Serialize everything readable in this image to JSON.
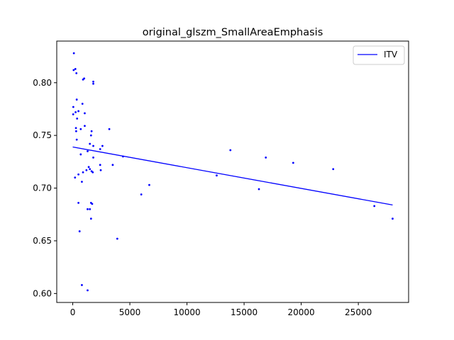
{
  "chart_data": {
    "type": "scatter",
    "title": "original_glszm_SmallAreaEmphasis",
    "xlabel": "",
    "ylabel": "",
    "xlim": [
      -1400,
      29400
    ],
    "ylim": [
      0.5915,
      0.8395
    ],
    "xticks": [
      0,
      5000,
      10000,
      15000,
      20000,
      25000
    ],
    "xtick_labels": [
      "0",
      "5000",
      "10000",
      "15000",
      "20000",
      "25000"
    ],
    "yticks": [
      0.6,
      0.65,
      0.7,
      0.75,
      0.8
    ],
    "ytick_labels": [
      "0.60",
      "0.65",
      "0.70",
      "0.75",
      "0.80"
    ],
    "grid": false,
    "legend": {
      "placement": "top-right",
      "entries": [
        "ITV"
      ]
    },
    "colors": {
      "points": "#0000ff",
      "fit_line": "#0000ff"
    },
    "fit_line": {
      "name": "ITV",
      "x": [
        0,
        28000
      ],
      "y": [
        0.739,
        0.684
      ]
    },
    "points": [
      {
        "x": 100,
        "y": 0.828
      },
      {
        "x": 80,
        "y": 0.812
      },
      {
        "x": 230,
        "y": 0.813
      },
      {
        "x": 320,
        "y": 0.809
      },
      {
        "x": 900,
        "y": 0.803
      },
      {
        "x": 1000,
        "y": 0.804
      },
      {
        "x": 1800,
        "y": 0.801
      },
      {
        "x": 1800,
        "y": 0.799
      },
      {
        "x": 350,
        "y": 0.784
      },
      {
        "x": 850,
        "y": 0.78
      },
      {
        "x": 50,
        "y": 0.777
      },
      {
        "x": 250,
        "y": 0.772
      },
      {
        "x": 500,
        "y": 0.773
      },
      {
        "x": 1050,
        "y": 0.771
      },
      {
        "x": 40,
        "y": 0.77
      },
      {
        "x": 380,
        "y": 0.766
      },
      {
        "x": 1050,
        "y": 0.759
      },
      {
        "x": 280,
        "y": 0.757
      },
      {
        "x": 700,
        "y": 0.756
      },
      {
        "x": 300,
        "y": 0.754
      },
      {
        "x": 3200,
        "y": 0.756
      },
      {
        "x": 1650,
        "y": 0.754
      },
      {
        "x": 1600,
        "y": 0.75
      },
      {
        "x": 350,
        "y": 0.746
      },
      {
        "x": 1500,
        "y": 0.742
      },
      {
        "x": 1800,
        "y": 0.74
      },
      {
        "x": 2600,
        "y": 0.74
      },
      {
        "x": 2400,
        "y": 0.737
      },
      {
        "x": 1300,
        "y": 0.735
      },
      {
        "x": 700,
        "y": 0.732
      },
      {
        "x": 1800,
        "y": 0.729
      },
      {
        "x": 4400,
        "y": 0.73
      },
      {
        "x": 2400,
        "y": 0.722
      },
      {
        "x": 3500,
        "y": 0.722
      },
      {
        "x": 1400,
        "y": 0.72
      },
      {
        "x": 1500,
        "y": 0.718
      },
      {
        "x": 1200,
        "y": 0.717
      },
      {
        "x": 1650,
        "y": 0.716
      },
      {
        "x": 1750,
        "y": 0.715
      },
      {
        "x": 2450,
        "y": 0.717
      },
      {
        "x": 900,
        "y": 0.715
      },
      {
        "x": 500,
        "y": 0.713
      },
      {
        "x": 200,
        "y": 0.71
      },
      {
        "x": 800,
        "y": 0.706
      },
      {
        "x": 6700,
        "y": 0.703
      },
      {
        "x": 6000,
        "y": 0.694
      },
      {
        "x": 500,
        "y": 0.686
      },
      {
        "x": 1600,
        "y": 0.686
      },
      {
        "x": 1700,
        "y": 0.685
      },
      {
        "x": 1300,
        "y": 0.68
      },
      {
        "x": 1500,
        "y": 0.68
      },
      {
        "x": 1600,
        "y": 0.671
      },
      {
        "x": 600,
        "y": 0.659
      },
      {
        "x": 3900,
        "y": 0.652
      },
      {
        "x": 800,
        "y": 0.608
      },
      {
        "x": 1300,
        "y": 0.603
      },
      {
        "x": 12600,
        "y": 0.712
      },
      {
        "x": 13800,
        "y": 0.736
      },
      {
        "x": 16300,
        "y": 0.699
      },
      {
        "x": 16900,
        "y": 0.729
      },
      {
        "x": 19300,
        "y": 0.724
      },
      {
        "x": 22800,
        "y": 0.718
      },
      {
        "x": 26400,
        "y": 0.683
      },
      {
        "x": 28000,
        "y": 0.671
      }
    ]
  }
}
